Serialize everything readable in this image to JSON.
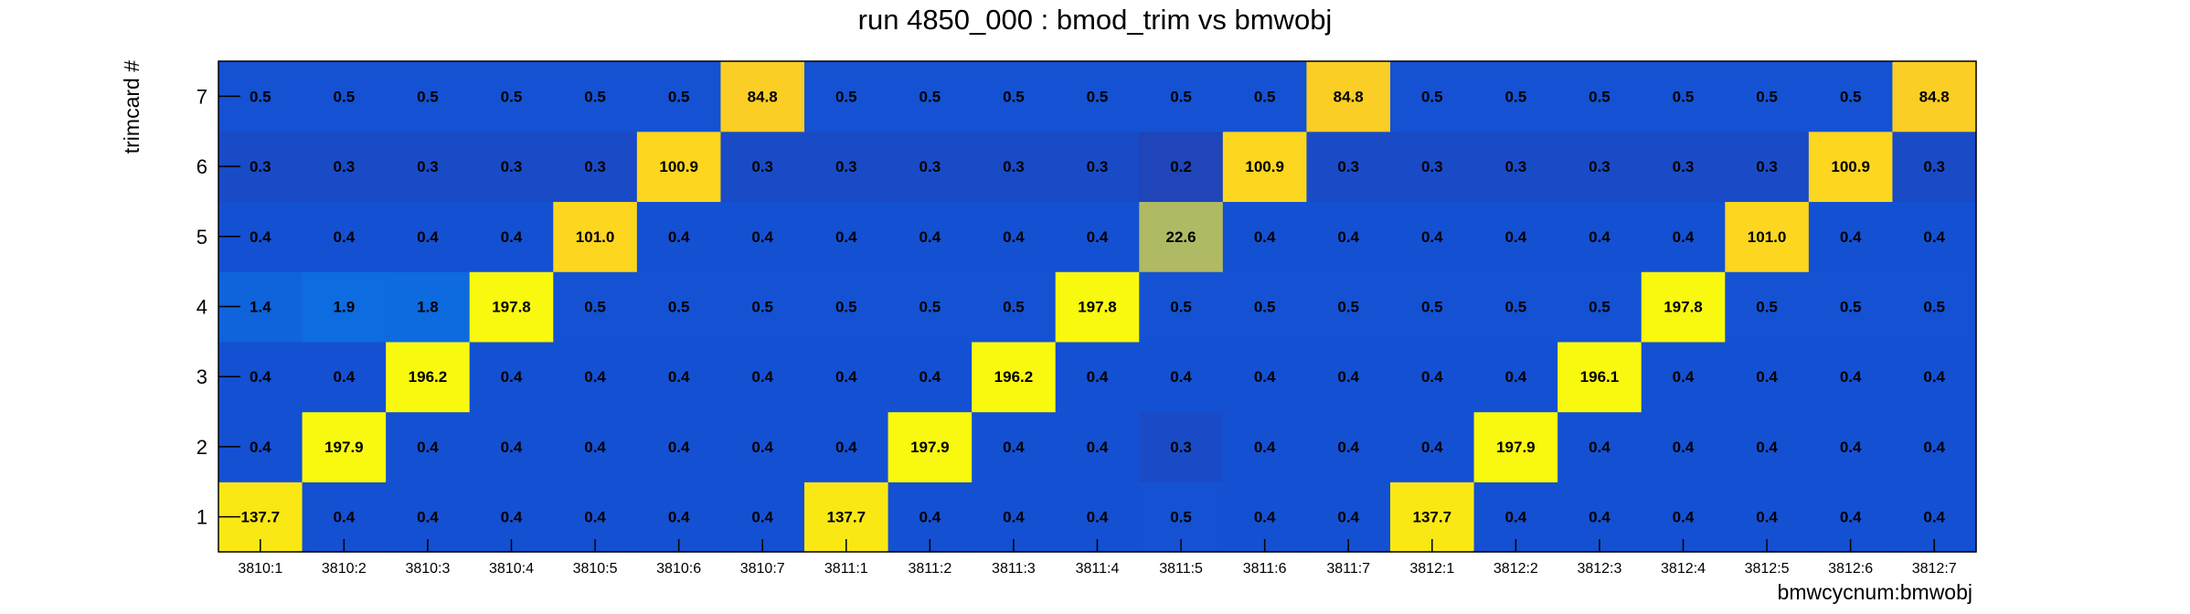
{
  "chart_data": {
    "type": "heatmap",
    "title": "run 4850_000 : bmod_trim vs bmwobj",
    "xlabel": "bmwcycnum:bmwobj",
    "ylabel": "trimcard #",
    "x_categories": [
      "3810:1",
      "3810:2",
      "3810:3",
      "3810:4",
      "3810:5",
      "3810:6",
      "3810:7",
      "3811:1",
      "3811:2",
      "3811:3",
      "3811:4",
      "3811:5",
      "3811:6",
      "3811:7",
      "3812:1",
      "3812:2",
      "3812:3",
      "3812:4",
      "3812:5",
      "3812:6",
      "3812:7"
    ],
    "y_categories": [
      "1",
      "2",
      "3",
      "4",
      "5",
      "6",
      "7"
    ],
    "values": [
      [
        "137.7",
        "0.4",
        "0.4",
        "0.4",
        "0.4",
        "0.4",
        "0.4",
        "137.7",
        "0.4",
        "0.4",
        "0.4",
        "0.5",
        "0.4",
        "0.4",
        "137.7",
        "0.4",
        "0.4",
        "0.4",
        "0.4",
        "0.4",
        "0.4"
      ],
      [
        "0.4",
        "197.9",
        "0.4",
        "0.4",
        "0.4",
        "0.4",
        "0.4",
        "0.4",
        "197.9",
        "0.4",
        "0.4",
        "0.3",
        "0.4",
        "0.4",
        "0.4",
        "197.9",
        "0.4",
        "0.4",
        "0.4",
        "0.4",
        "0.4"
      ],
      [
        "0.4",
        "0.4",
        "196.2",
        "0.4",
        "0.4",
        "0.4",
        "0.4",
        "0.4",
        "0.4",
        "196.2",
        "0.4",
        "0.4",
        "0.4",
        "0.4",
        "0.4",
        "0.4",
        "196.1",
        "0.4",
        "0.4",
        "0.4",
        "0.4"
      ],
      [
        "1.4",
        "1.9",
        "1.8",
        "197.8",
        "0.5",
        "0.5",
        "0.5",
        "0.5",
        "0.5",
        "0.5",
        "197.8",
        "0.5",
        "0.5",
        "0.5",
        "0.5",
        "0.5",
        "0.5",
        "197.8",
        "0.5",
        "0.5",
        "0.5"
      ],
      [
        "0.4",
        "0.4",
        "0.4",
        "0.4",
        "101.0",
        "0.4",
        "0.4",
        "0.4",
        "0.4",
        "0.4",
        "0.4",
        "22.6",
        "0.4",
        "0.4",
        "0.4",
        "0.4",
        "0.4",
        "0.4",
        "101.0",
        "0.4",
        "0.4"
      ],
      [
        "0.3",
        "0.3",
        "0.3",
        "0.3",
        "0.3",
        "100.9",
        "0.3",
        "0.3",
        "0.3",
        "0.3",
        "0.3",
        "0.2",
        "100.9",
        "0.3",
        "0.3",
        "0.3",
        "0.3",
        "0.3",
        "0.3",
        "100.9",
        "0.3"
      ],
      [
        "0.5",
        "0.5",
        "0.5",
        "0.5",
        "0.5",
        "0.5",
        "84.8",
        "0.5",
        "0.5",
        "0.5",
        "0.5",
        "0.5",
        "0.5",
        "84.8",
        "0.5",
        "0.5",
        "0.5",
        "0.5",
        "0.5",
        "0.5",
        "84.8"
      ]
    ],
    "z_range": [
      0,
      200
    ],
    "grid": false,
    "colors": {
      "background_low": "#2a3aa0",
      "palette_low": "#1450d2",
      "palette_high": "#f8fa0e"
    }
  }
}
